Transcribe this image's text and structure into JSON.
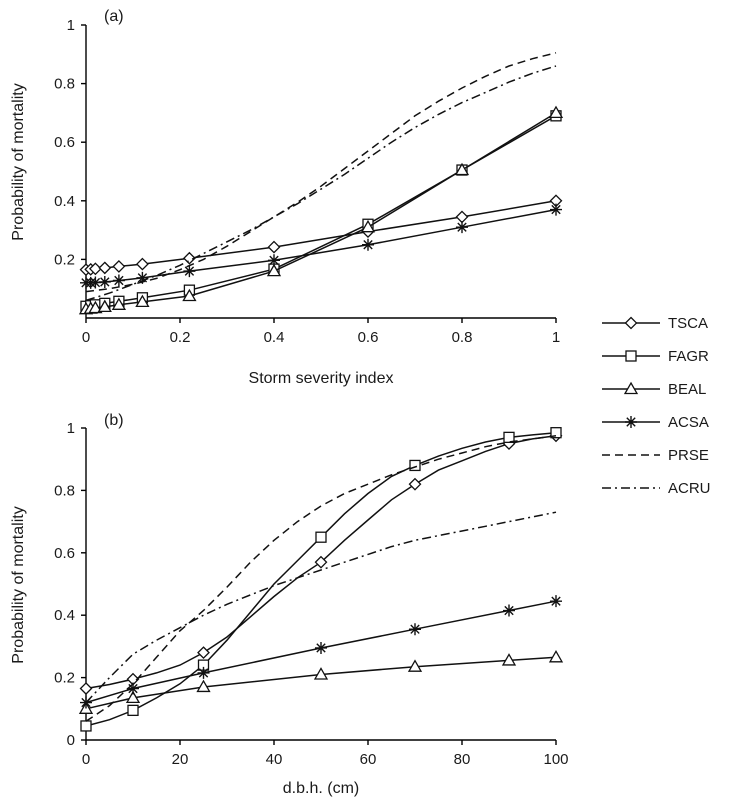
{
  "chart_data": [
    {
      "type": "line",
      "panel_label": "(a)",
      "xlabel": "Storm severity index",
      "ylabel": "Probability of mortality",
      "xlim": [
        0,
        1
      ],
      "ylim": [
        0,
        1
      ],
      "xticks": [
        "0",
        "0.2",
        "0.4",
        "0.6",
        "0.8",
        "1"
      ],
      "yticks": [
        "0.2",
        "0.4",
        "0.6",
        "0.8",
        "1"
      ],
      "grid": false,
      "series": [
        {
          "name": "TSCA",
          "marker": "diamond",
          "dash": "solid",
          "x": [
            0,
            0.01,
            0.02,
            0.04,
            0.07,
            0.12,
            0.22,
            0.4,
            0.6,
            0.8,
            1
          ],
          "y": [
            0.165,
            0.166,
            0.168,
            0.171,
            0.176,
            0.184,
            0.204,
            0.242,
            0.295,
            0.345,
            0.4
          ]
        },
        {
          "name": "FAGR",
          "marker": "square",
          "dash": "solid",
          "x": [
            0,
            0.01,
            0.02,
            0.04,
            0.07,
            0.12,
            0.22,
            0.4,
            0.6,
            0.8,
            1
          ],
          "y": [
            0.04,
            0.042,
            0.045,
            0.05,
            0.057,
            0.069,
            0.095,
            0.167,
            0.32,
            0.505,
            0.69
          ]
        },
        {
          "name": "BEAL",
          "marker": "triangle",
          "dash": "solid",
          "x": [
            0,
            0.01,
            0.02,
            0.04,
            0.07,
            0.12,
            0.22,
            0.4,
            0.6,
            0.8,
            1
          ],
          "y": [
            0.03,
            0.032,
            0.034,
            0.038,
            0.045,
            0.055,
            0.075,
            0.16,
            0.31,
            0.505,
            0.7
          ]
        },
        {
          "name": "ACSA",
          "marker": "asterisk",
          "dash": "solid",
          "x": [
            0,
            0.01,
            0.02,
            0.04,
            0.07,
            0.12,
            0.22,
            0.4,
            0.6,
            0.8,
            1
          ],
          "y": [
            0.12,
            0.12,
            0.121,
            0.123,
            0.128,
            0.137,
            0.16,
            0.197,
            0.25,
            0.31,
            0.37
          ]
        },
        {
          "name": "PRSE",
          "marker": "none",
          "dash": "dash",
          "x": [
            0,
            0.05,
            0.1,
            0.15,
            0.2,
            0.25,
            0.3,
            0.35,
            0.4,
            0.45,
            0.5,
            0.55,
            0.6,
            0.65,
            0.7,
            0.75,
            0.8,
            0.85,
            0.9,
            0.95,
            1
          ],
          "y": [
            0.09,
            0.1,
            0.115,
            0.135,
            0.165,
            0.2,
            0.245,
            0.295,
            0.345,
            0.395,
            0.45,
            0.51,
            0.57,
            0.63,
            0.69,
            0.74,
            0.785,
            0.825,
            0.86,
            0.885,
            0.905
          ]
        },
        {
          "name": "ACRU",
          "marker": "none",
          "dash": "dashdot",
          "x": [
            0,
            0.05,
            0.1,
            0.15,
            0.2,
            0.25,
            0.3,
            0.35,
            0.4,
            0.45,
            0.5,
            0.55,
            0.6,
            0.65,
            0.7,
            0.75,
            0.8,
            0.85,
            0.9,
            0.95,
            1
          ],
          "y": [
            0.06,
            0.085,
            0.115,
            0.145,
            0.18,
            0.22,
            0.26,
            0.3,
            0.345,
            0.39,
            0.44,
            0.49,
            0.545,
            0.6,
            0.65,
            0.695,
            0.735,
            0.77,
            0.805,
            0.835,
            0.86
          ]
        }
      ]
    },
    {
      "type": "line",
      "panel_label": "(b)",
      "xlabel": "d.b.h. (cm)",
      "ylabel": "Probability of mortality",
      "xlim": [
        0,
        100
      ],
      "ylim": [
        0,
        1
      ],
      "xticks": [
        "0",
        "20",
        "40",
        "60",
        "80",
        "100"
      ],
      "yticks": [
        "0",
        "0.2",
        "0.4",
        "0.6",
        "0.8",
        "1"
      ],
      "grid": false,
      "series": [
        {
          "name": "TSCA",
          "marker": "diamond",
          "dash": "solid",
          "x": [
            0,
            10,
            25,
            50,
            70,
            90,
            100
          ],
          "y": [
            0.165,
            0.195,
            0.28,
            0.57,
            0.82,
            0.95,
            0.975
          ],
          "line_x": [
            0,
            5,
            10,
            15,
            20,
            25,
            30,
            35,
            40,
            45,
            50,
            55,
            60,
            65,
            70,
            75,
            80,
            85,
            90,
            95,
            100
          ],
          "line_y": [
            0.165,
            0.178,
            0.195,
            0.215,
            0.24,
            0.28,
            0.33,
            0.395,
            0.46,
            0.52,
            0.57,
            0.64,
            0.705,
            0.77,
            0.82,
            0.865,
            0.895,
            0.925,
            0.95,
            0.965,
            0.975
          ]
        },
        {
          "name": "FAGR",
          "marker": "square",
          "dash": "solid",
          "x": [
            0,
            10,
            25,
            50,
            70,
            90,
            100
          ],
          "y": [
            0.045,
            0.095,
            0.24,
            0.65,
            0.88,
            0.97,
            0.985
          ],
          "line_x": [
            0,
            5,
            10,
            15,
            20,
            25,
            30,
            35,
            40,
            45,
            50,
            55,
            60,
            65,
            70,
            75,
            80,
            85,
            90,
            95,
            100
          ],
          "line_y": [
            0.045,
            0.065,
            0.095,
            0.135,
            0.18,
            0.24,
            0.32,
            0.41,
            0.5,
            0.575,
            0.65,
            0.725,
            0.79,
            0.845,
            0.88,
            0.91,
            0.935,
            0.955,
            0.97,
            0.978,
            0.985
          ]
        },
        {
          "name": "BEAL",
          "marker": "triangle",
          "dash": "solid",
          "x": [
            0,
            10,
            25,
            50,
            70,
            90,
            100
          ],
          "y": [
            0.1,
            0.135,
            0.17,
            0.21,
            0.235,
            0.255,
            0.265
          ]
        },
        {
          "name": "ACSA",
          "marker": "asterisk",
          "dash": "solid",
          "x": [
            0,
            10,
            25,
            50,
            70,
            90,
            100
          ],
          "y": [
            0.12,
            0.165,
            0.215,
            0.295,
            0.355,
            0.415,
            0.445
          ]
        },
        {
          "name": "PRSE",
          "marker": "none",
          "dash": "dash",
          "x": [
            0,
            5,
            10,
            15,
            20,
            25,
            30,
            35,
            40,
            45,
            50,
            55,
            60,
            65,
            70,
            75,
            80,
            85,
            90,
            95,
            100
          ],
          "y": [
            0.06,
            0.11,
            0.18,
            0.265,
            0.35,
            0.415,
            0.49,
            0.57,
            0.64,
            0.7,
            0.75,
            0.79,
            0.82,
            0.85,
            0.875,
            0.9,
            0.92,
            0.94,
            0.955,
            0.965,
            0.975
          ]
        },
        {
          "name": "ACRU",
          "marker": "none",
          "dash": "dashdot",
          "x": [
            0,
            5,
            10,
            15,
            20,
            25,
            30,
            35,
            40,
            45,
            50,
            55,
            60,
            65,
            70,
            75,
            80,
            85,
            90,
            95,
            100
          ],
          "y": [
            0.12,
            0.2,
            0.275,
            0.32,
            0.36,
            0.4,
            0.435,
            0.465,
            0.495,
            0.52,
            0.545,
            0.57,
            0.595,
            0.62,
            0.64,
            0.655,
            0.67,
            0.685,
            0.7,
            0.715,
            0.73
          ]
        }
      ]
    }
  ],
  "legend": {
    "placement": "right",
    "entries": [
      {
        "name": "TSCA",
        "marker": "diamond",
        "dash": "solid"
      },
      {
        "name": "FAGR",
        "marker": "square",
        "dash": "solid"
      },
      {
        "name": "BEAL",
        "marker": "triangle",
        "dash": "solid"
      },
      {
        "name": "ACSA",
        "marker": "asterisk",
        "dash": "solid"
      },
      {
        "name": "PRSE",
        "marker": "none",
        "dash": "dash"
      },
      {
        "name": "ACRU",
        "marker": "none",
        "dash": "dashdot"
      }
    ]
  }
}
